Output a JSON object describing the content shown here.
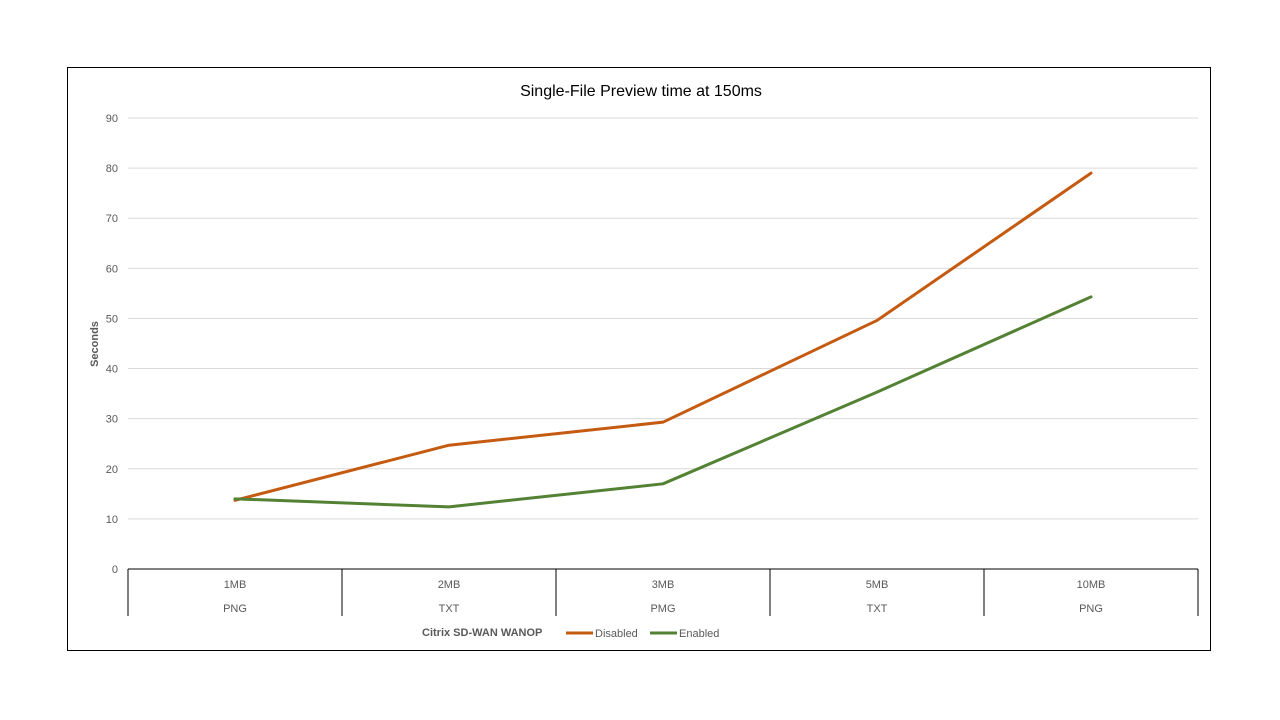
{
  "chart_data": {
    "type": "line",
    "title": "Single-File Preview time at 150ms",
    "ylabel": "Seconds",
    "xlabel": "",
    "ylim": [
      0,
      90
    ],
    "yticks": [
      0,
      10,
      20,
      30,
      40,
      50,
      60,
      70,
      80,
      90
    ],
    "grid": true,
    "categories": [
      {
        "size": "1MB",
        "type": "PNG"
      },
      {
        "size": "2MB",
        "type": "TXT"
      },
      {
        "size": "3MB",
        "type": "PMG"
      },
      {
        "size": "5MB",
        "type": "TXT"
      },
      {
        "size": "10MB",
        "type": "PNG"
      }
    ],
    "legend": {
      "title": "Citrix SD-WAN WANOP",
      "position": "bottom"
    },
    "series": [
      {
        "name": "Disabled",
        "color": "#C55A11",
        "values": [
          13.7,
          24.7,
          29.3,
          49.6,
          79.0
        ]
      },
      {
        "name": "Enabled",
        "color": "#548235",
        "values": [
          14.0,
          12.4,
          17.0,
          35.3,
          54.3
        ]
      }
    ]
  }
}
